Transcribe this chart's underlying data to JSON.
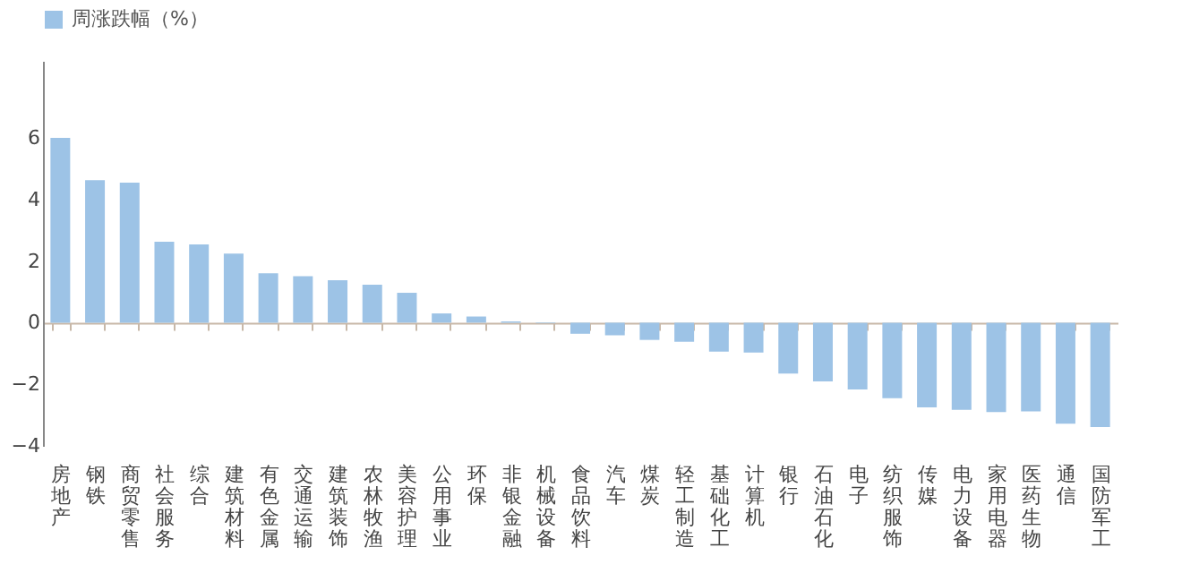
{
  "chart_data": {
    "type": "bar",
    "legend_title": null,
    "categories": [
      "房地产",
      "钢铁",
      "商贸零售",
      "社会服务",
      "综合",
      "建筑材料",
      "有色金属",
      "交通运输",
      "建筑装饰",
      "农林牧渔",
      "美容护理",
      "公用事业",
      "环保",
      "非银金融",
      "机械设备",
      "食品饮料",
      "汽车",
      "煤炭",
      "轻工制造",
      "基础化工",
      "计算机",
      "银行",
      "石油石化",
      "电子",
      "纺织服饰",
      "传媒",
      "电力设备",
      "家用电器",
      "医药生物",
      "通信",
      "国防军工"
    ],
    "series": [
      {
        "name": "周涨跌幅（%）",
        "color": "#9dc3e6",
        "values": [
          6.0,
          4.63,
          4.55,
          2.63,
          2.54,
          2.24,
          1.6,
          1.51,
          1.38,
          1.23,
          0.97,
          0.3,
          0.2,
          0.04,
          -0.02,
          -0.36,
          -0.41,
          -0.56,
          -0.62,
          -0.94,
          -0.97,
          -1.65,
          -1.91,
          -2.17,
          -2.45,
          -2.75,
          -2.83,
          -2.9,
          -2.88,
          -3.28,
          -3.39
        ]
      }
    ],
    "ylim": [
      -4,
      8.5
    ],
    "yticks": [
      -4,
      -2,
      0,
      2,
      4,
      6
    ],
    "legend": "top"
  }
}
